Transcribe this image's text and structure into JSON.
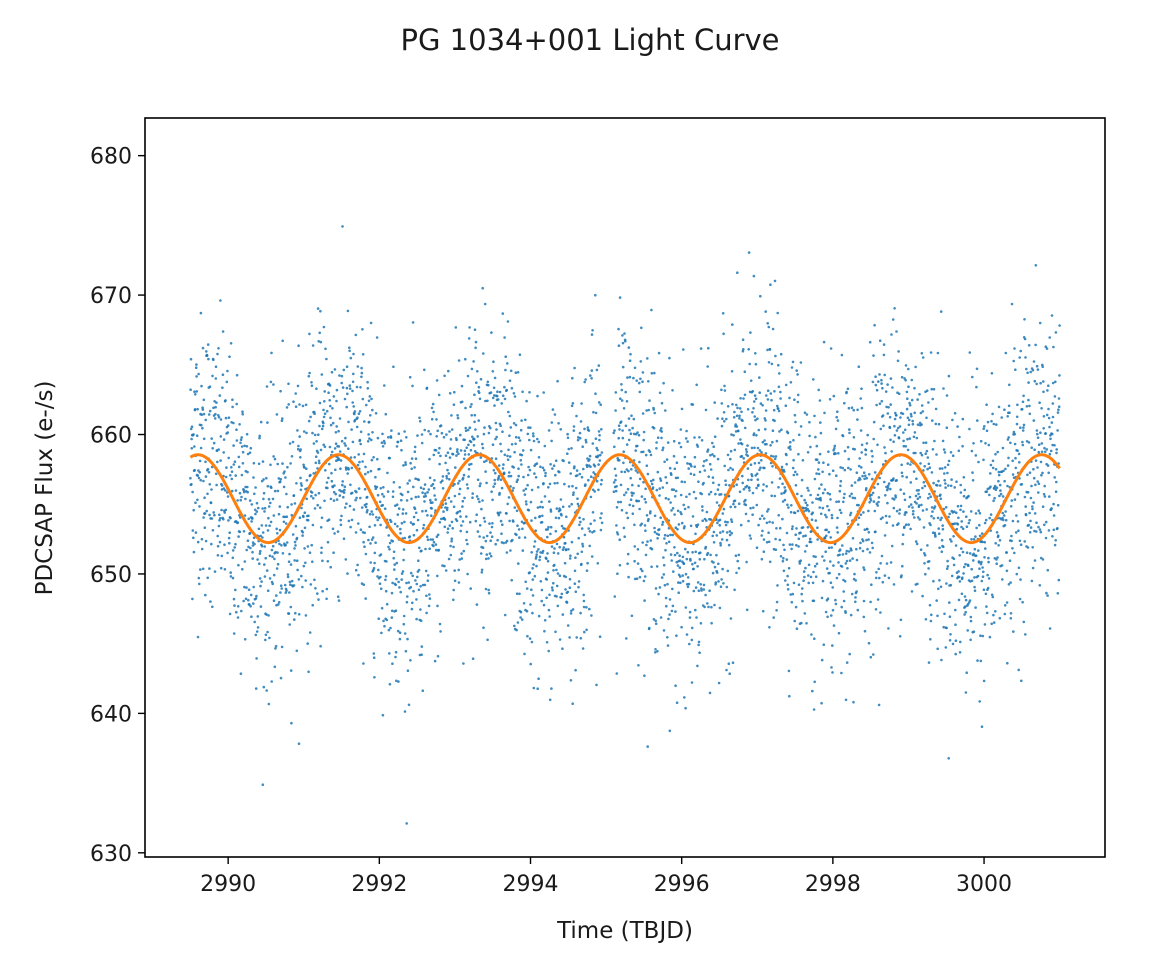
{
  "chart_data": {
    "type": "scatter",
    "title": "PG 1034+001 Light Curve",
    "xlabel": "Time (TBJD)",
    "ylabel": "PDCSAP Flux (e-/s)",
    "xlim": [
      2988.9,
      3001.6
    ],
    "ylim": [
      629.7,
      682.7
    ],
    "xticks": [
      2990,
      2992,
      2994,
      2996,
      2998,
      3000
    ],
    "yticks": [
      630,
      640,
      650,
      660,
      670,
      680
    ],
    "grid": false,
    "legend": "none",
    "series": [
      {
        "kind": "scatter",
        "color": "#1f77b4",
        "x_range": [
          2989.5,
          3001.0
        ],
        "gap": [
          2994.95,
          2995.1
        ],
        "trend_mean": 655.4,
        "trend_amplitude": 3.2,
        "trend_period": 1.86,
        "trend_peak_time": 2989.6,
        "scatter_sigma": 5.0,
        "n_points": 4200
      },
      {
        "kind": "line",
        "color": "#ff7f0e",
        "function": "sinusoid",
        "x_range": [
          2989.5,
          3001.0
        ],
        "mean": 655.4,
        "amplitude": 3.15,
        "period": 1.86,
        "peak_time": 2989.6
      }
    ]
  }
}
